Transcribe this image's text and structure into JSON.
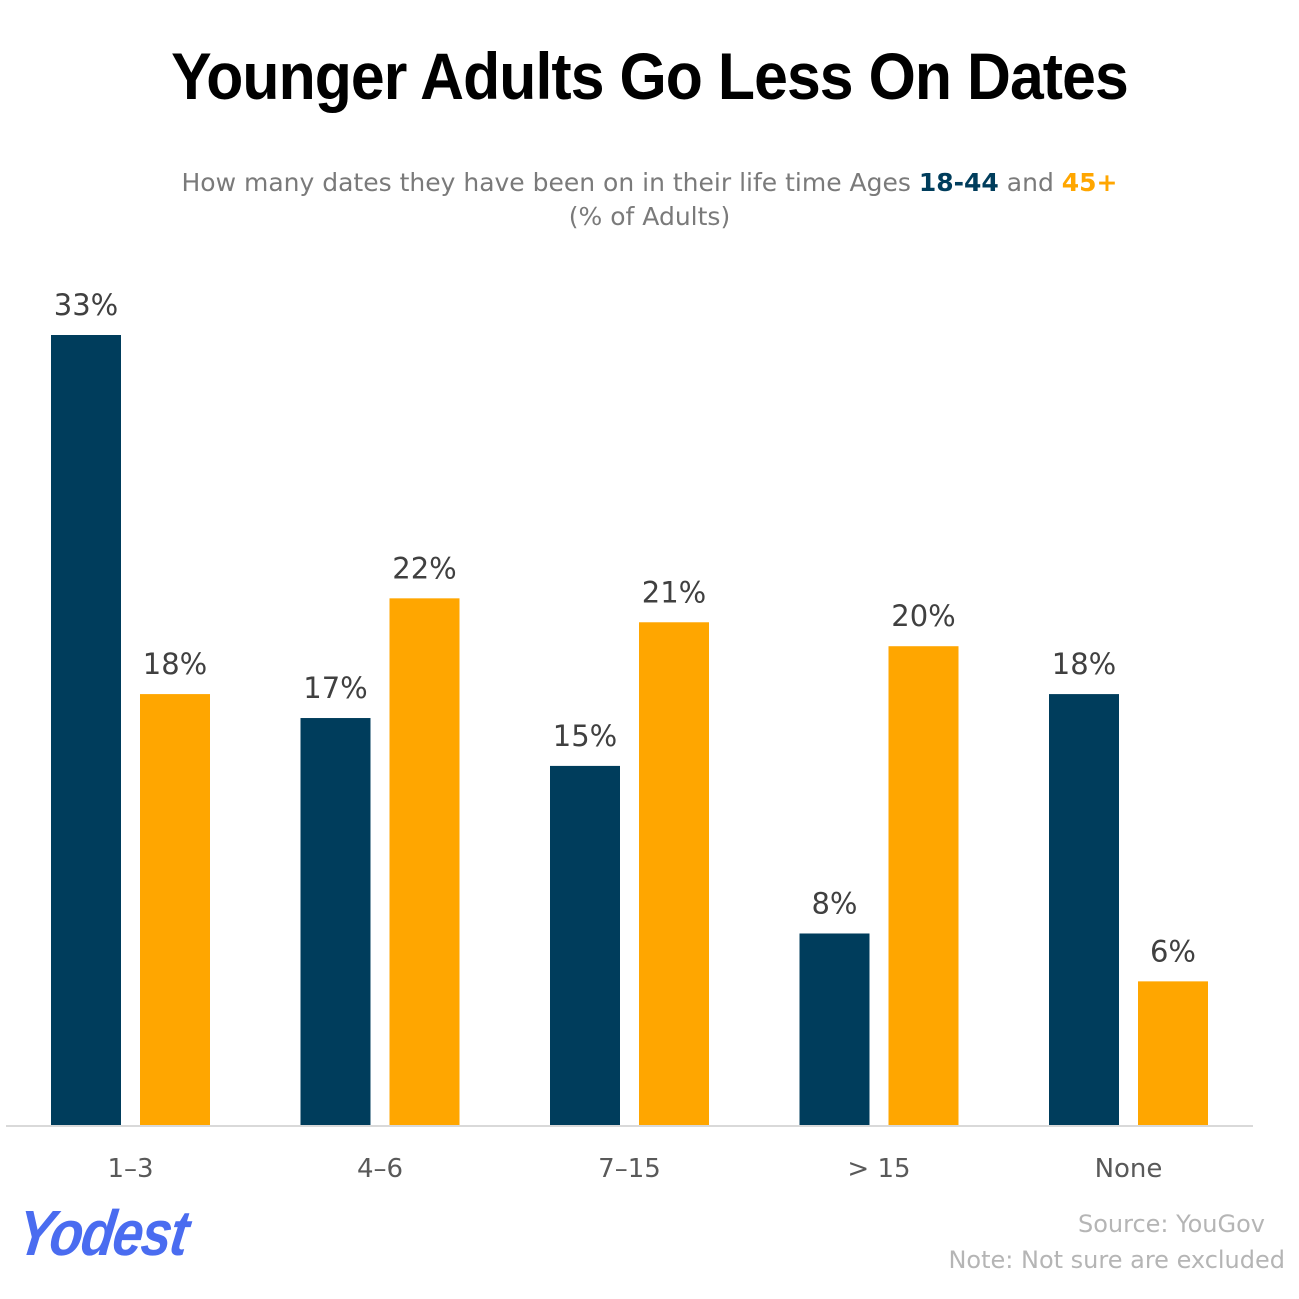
{
  "title": "Younger Adults Go Less On Dates",
  "subtitle": {
    "prefix": "How many dates they have been on in their life time Ages ",
    "series1_label": "18-44",
    "mid": " and ",
    "series2_label": "45+",
    "line2": "(% of Adults)"
  },
  "colors": {
    "series1": "#003d5c",
    "series2": "#ffa600",
    "axis": "#d9d9d9",
    "label": "#404040",
    "tick": "#595959"
  },
  "chart_data": {
    "type": "bar",
    "title": "Younger Adults Go Less On Dates",
    "categories": [
      "1–3",
      "4–6",
      "7–15",
      "> 15",
      "None"
    ],
    "series": [
      {
        "name": "18-44",
        "values": [
          33,
          17,
          15,
          8,
          18
        ],
        "labels": [
          "33%",
          "17%",
          "15%",
          "8%",
          "18%"
        ]
      },
      {
        "name": "45+",
        "values": [
          18,
          22,
          21,
          20,
          6
        ],
        "labels": [
          "18%",
          "22%",
          "21%",
          "20%",
          "6%"
        ]
      }
    ],
    "xlabel": "",
    "ylabel": "% of Adults",
    "ylim": [
      0,
      33
    ],
    "grid": false,
    "legend": "none"
  },
  "footer": {
    "logo": "Yodest",
    "source": "Source: YouGov",
    "note": "Note: Not sure are excluded"
  }
}
